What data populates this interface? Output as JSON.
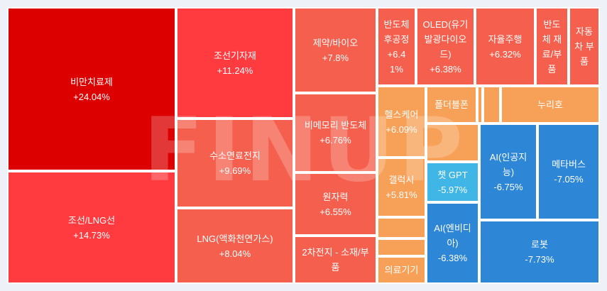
{
  "chart_data": {
    "type": "treemap",
    "title": "",
    "watermark": "FINUP",
    "colors": {
      "up_strong": "#dc0000",
      "up_high": "#ff3b40",
      "up_mid": "#f5604e",
      "up_low": "#f7a058",
      "down_mid": "#2d86d6",
      "down_light": "#3fb6e6"
    },
    "cells": [
      {
        "name": "비만치료제",
        "lines": [
          "비만치료제"
        ],
        "change": "+24.04%",
        "value": 24.04,
        "color": "#dc0000"
      },
      {
        "name": "조선/LNG선",
        "lines": [
          "조선/LNG선"
        ],
        "change": "+14.73%",
        "value": 14.73,
        "color": "#ff3b40"
      },
      {
        "name": "조선기자재",
        "lines": [
          "조선기자재"
        ],
        "change": "+11.24%",
        "value": 11.24,
        "color": "#ff3b40"
      },
      {
        "name": "수소연료전지",
        "lines": [
          "수소연료전지"
        ],
        "change": "+9.69%",
        "value": 9.69,
        "color": "#f5604e"
      },
      {
        "name": "LNG(액화천연가스)",
        "lines": [
          "LNG(액화천연가스)"
        ],
        "change": "+8.04%",
        "value": 8.04,
        "color": "#f5604e"
      },
      {
        "name": "제약/바이오",
        "lines": [
          "제약/바이오"
        ],
        "change": "+7.8%",
        "value": 7.8,
        "color": "#f5604e"
      },
      {
        "name": "비메모리 반도체",
        "lines": [
          "비메모리 반도체"
        ],
        "change": "+6.76%",
        "value": 6.76,
        "color": "#f5604e"
      },
      {
        "name": "원자력",
        "lines": [
          "원자력"
        ],
        "change": "+6.55%",
        "value": 6.55,
        "color": "#f5604e"
      },
      {
        "name": "2차전지 - 소재/부품",
        "lines": [
          "2차전지 - 소재/부",
          "품"
        ],
        "change": "",
        "value": null,
        "color": "#f5604e"
      },
      {
        "name": "반도체 후공정",
        "lines": [
          "반도체",
          "후공정",
          "+6.4",
          "1%"
        ],
        "change": "+6.41%",
        "value": 6.41,
        "color": "#f5604e"
      },
      {
        "name": "OLED(유기발광다이오드)",
        "lines": [
          "OLED(유기",
          "발광다이오",
          "드)"
        ],
        "change": "+6.38%",
        "value": 6.38,
        "color": "#f5604e"
      },
      {
        "name": "자율주행",
        "lines": [
          "자율주행"
        ],
        "change": "+6.32%",
        "value": 6.32,
        "color": "#f5604e"
      },
      {
        "name": "반도체 재료/부품",
        "lines": [
          "반도",
          "체 재",
          "료/부",
          "품"
        ],
        "change": "",
        "value": null,
        "color": "#f5604e"
      },
      {
        "name": "자동차 부품",
        "lines": [
          "자동",
          "차 부",
          "품"
        ],
        "change": "",
        "value": null,
        "color": "#f5604e"
      },
      {
        "name": "헬스케어",
        "lines": [
          "헬스케어"
        ],
        "change": "+6.09%",
        "value": 6.09,
        "color": "#f7a058"
      },
      {
        "name": "갤럭시",
        "lines": [
          "갤럭시"
        ],
        "change": "+5.81%",
        "value": 5.81,
        "color": "#f7a058"
      },
      {
        "name": "의료기기",
        "lines": [
          "의료기기"
        ],
        "change": "",
        "value": null,
        "color": "#f7a058"
      },
      {
        "name": "폴더블폰",
        "lines": [
          "폴더블폰"
        ],
        "change": "",
        "value": null,
        "color": "#f7a058"
      },
      {
        "name": "누리호",
        "lines": [
          "누리호"
        ],
        "change": "",
        "value": null,
        "color": "#f7a058"
      },
      {
        "name": "챗 GPT",
        "lines": [
          "챗 GPT"
        ],
        "change": "-5.97%",
        "value": -5.97,
        "color": "#3fb6e6"
      },
      {
        "name": "AI(인공지능)",
        "lines": [
          "AI(인공지",
          "능)"
        ],
        "change": "-6.75%",
        "value": -6.75,
        "color": "#2d86d6"
      },
      {
        "name": "메타버스",
        "lines": [
          "메타버스"
        ],
        "change": "-7.05%",
        "value": -7.05,
        "color": "#2d86d6"
      },
      {
        "name": "AI(엔비디아)",
        "lines": [
          "AI(엔비디",
          "아)"
        ],
        "change": "-6.38%",
        "value": -6.38,
        "color": "#2d86d6"
      },
      {
        "name": "로봇",
        "lines": [
          "로봇"
        ],
        "change": "-7.73%",
        "value": -7.73,
        "color": "#2d86d6"
      },
      {
        "name": "",
        "lines": [],
        "change": "",
        "value": null,
        "color": "#f7a058"
      },
      {
        "name": "",
        "lines": [],
        "change": "",
        "value": null,
        "color": "#f7a058"
      },
      {
        "name": "",
        "lines": [],
        "change": "",
        "value": null,
        "color": "#f7a058"
      },
      {
        "name": "",
        "lines": [],
        "change": "",
        "value": null,
        "color": "#f7a058"
      },
      {
        "name": "",
        "lines": [],
        "change": "",
        "value": null,
        "color": "#f7a058"
      },
      {
        "name": "",
        "lines": [],
        "change": "",
        "value": null,
        "color": "#f7a058"
      }
    ]
  }
}
